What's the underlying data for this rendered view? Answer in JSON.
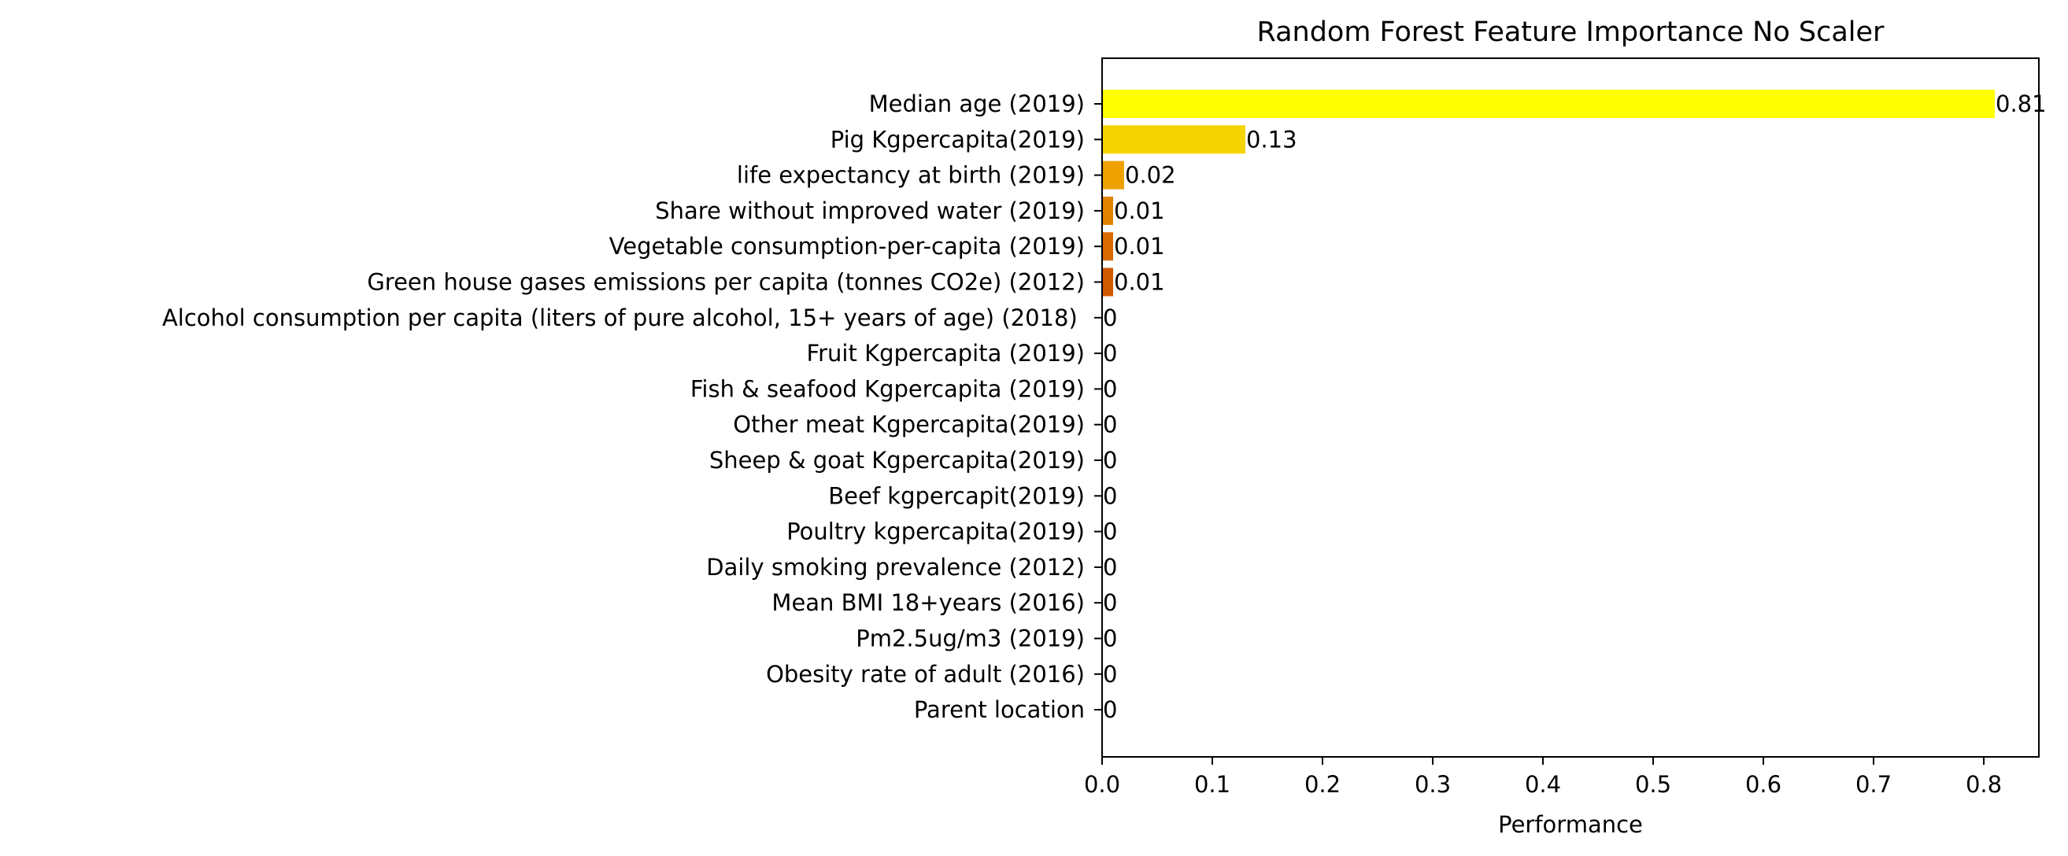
{
  "chart_data": {
    "type": "bar",
    "orientation": "horizontal",
    "title": "Random Forest Feature Importance No Scaler",
    "xlabel": "Performance",
    "ylabel": "",
    "xlim": [
      0,
      0.85
    ],
    "xticks": [
      "0.0",
      "0.1",
      "0.2",
      "0.3",
      "0.4",
      "0.5",
      "0.6",
      "0.7",
      "0.8"
    ],
    "grid": false,
    "legend": "none",
    "categories": [
      "Median age (2019)",
      "Pig Kgpercapita(2019)",
      "life expectancy at birth (2019)",
      "Share without improved water (2019)",
      "Vegetable consumption-per-capita (2019)",
      "Green house gases emissions per capita (tonnes CO2e) (2012)",
      "Alcohol consumption per capita (liters of pure alcohol, 15+ years of age) (2018) ",
      "Fruit Kgpercapita (2019)",
      "Fish & seafood Kgpercapita (2019)",
      "Other meat Kgpercapita(2019)",
      "Sheep & goat Kgpercapita(2019)",
      "Beef kgpercapit(2019)",
      "Poultry kgpercapita(2019)",
      "Daily smoking prevalence (2012)",
      "Mean BMI 18+years (2016)",
      "Pm2.5ug/m3 (2019)",
      "Obesity rate of adult (2016)",
      "Parent location"
    ],
    "values": [
      0.81,
      0.13,
      0.02,
      0.01,
      0.01,
      0.01,
      0.0,
      0.0,
      0.0,
      0.0,
      0.0,
      0.0,
      0.0,
      0.0,
      0.0,
      0.0,
      0.0,
      0.0
    ],
    "value_labels": [
      "0.81",
      "0.13",
      "0.02",
      "0.01",
      "0.01",
      "0.01",
      "0",
      "0",
      "0",
      "0",
      "0",
      "0",
      "0",
      "0",
      "0",
      "0",
      "0",
      "0"
    ],
    "colors": [
      "#ffff00",
      "#f5d400",
      "#eda200",
      "#e08300",
      "#d86c00",
      "#cf5a00",
      "#c04d00",
      "#b04400",
      "#a03c00",
      "#903500",
      "#802f00",
      "#702900",
      "#602300",
      "#501d00",
      "#401700",
      "#301100",
      "#200b00",
      "#100500"
    ]
  }
}
